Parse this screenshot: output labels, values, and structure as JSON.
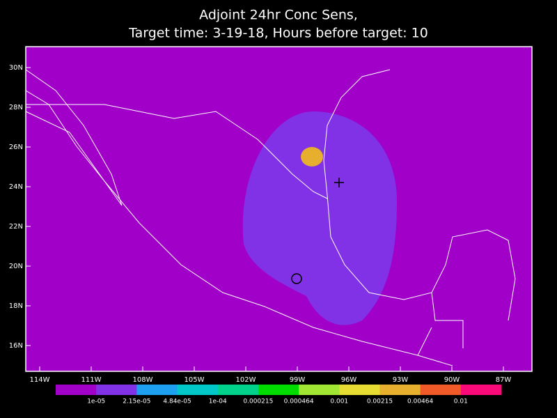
{
  "title": [
    "Adjoint 24hr Conc Sens,",
    "Target time: 3-19-18, Hours before target: 10"
  ],
  "map": {
    "lat_labels": [
      "30N",
      "28N",
      "26N",
      "24N",
      "22N",
      "20N",
      "18N",
      "16N"
    ],
    "lon_labels": [
      "114W",
      "111W",
      "108W",
      "105W",
      "102W",
      "99W",
      "96W",
      "93W",
      "90W",
      "87W"
    ]
  },
  "colorbar": {
    "colors": [
      "#a000c8",
      "#8232e6",
      "#1ea0f0",
      "#00c8c8",
      "#00d28c",
      "#00dc00",
      "#a0e632",
      "#e6dc32",
      "#e6af2d",
      "#f05a28",
      "#fa0a78"
    ],
    "labels": [
      "1e-05",
      "2.15e-05",
      "4.84e-05",
      "1e-04",
      "0.000215",
      "0.000464",
      "0.001",
      "0.00215",
      "0.00464",
      "0.01"
    ]
  }
}
